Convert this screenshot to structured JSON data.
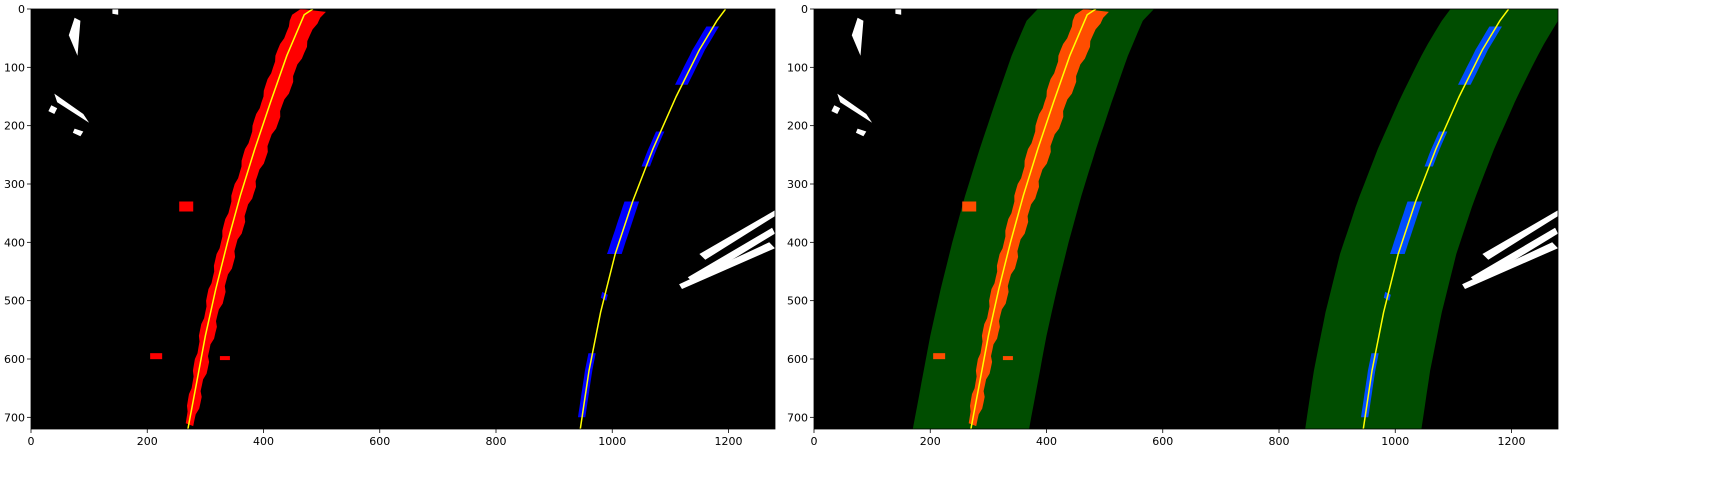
{
  "colors": {
    "background": "#000000",
    "left_pixels": "#ff0000",
    "right_pixels": "#0000ff",
    "noise_pixels": "#ffffff",
    "fit_line": "#ffff00",
    "search_margin": "#004d00",
    "left_pixels_overlay": "#ff4d00",
    "right_pixels_overlay": "#004dff"
  },
  "chart_data": [
    {
      "type": "image",
      "title": "",
      "xlabel": "",
      "ylabel": "",
      "xlim": [
        0,
        1280
      ],
      "ylim": [
        720,
        0
      ],
      "xticks": [
        0,
        200,
        400,
        600,
        800,
        1000,
        1200
      ],
      "yticks": [
        0,
        100,
        200,
        300,
        400,
        500,
        600,
        700
      ],
      "grid": false,
      "series": [
        {
          "x": [
            270,
            285,
            300,
            318,
            338,
            360,
            385,
            412,
            440,
            470,
            485
          ],
          "y": [
            720,
            640,
            560,
            480,
            400,
            320,
            240,
            160,
            80,
            10,
            0
          ]
        },
        {
          "x": [
            945,
            960,
            980,
            1005,
            1035,
            1070,
            1110,
            1150,
            1180,
            1195
          ],
          "y": [
            720,
            620,
            520,
            420,
            330,
            240,
            150,
            70,
            20,
            0
          ]
        }
      ],
      "search_margin": 0
    },
    {
      "type": "image",
      "title": "",
      "xlabel": "",
      "ylabel": "",
      "xlim": [
        0,
        1280
      ],
      "ylim": [
        720,
        0
      ],
      "xticks": [
        0,
        200,
        400,
        600,
        800,
        1000,
        1200
      ],
      "yticks": [
        0,
        100,
        200,
        300,
        400,
        500,
        600,
        700
      ],
      "grid": false,
      "series": [
        {
          "x": [
            270,
            285,
            300,
            318,
            338,
            360,
            385,
            412,
            440,
            470,
            485
          ],
          "y": [
            720,
            640,
            560,
            480,
            400,
            320,
            240,
            160,
            80,
            10,
            0
          ]
        },
        {
          "x": [
            945,
            960,
            980,
            1005,
            1035,
            1070,
            1110,
            1150,
            1180,
            1195
          ],
          "y": [
            720,
            620,
            520,
            420,
            330,
            240,
            150,
            70,
            20,
            0
          ]
        }
      ],
      "search_margin": 100
    }
  ]
}
